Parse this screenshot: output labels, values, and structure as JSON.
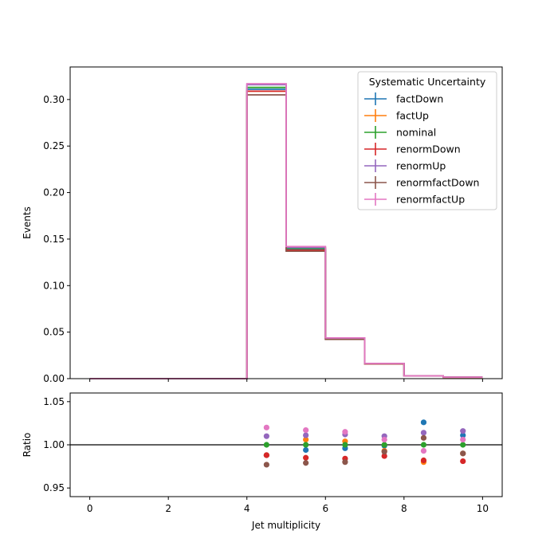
{
  "chart_data": [
    {
      "type": "line",
      "step": true,
      "ylabel": "Events",
      "ylim": [
        0,
        0.335
      ],
      "xlim": [
        -0.5,
        10.5
      ],
      "yticks": [
        "0.00",
        "0.05",
        "0.10",
        "0.15",
        "0.20",
        "0.25",
        "0.30"
      ],
      "ytick_values": [
        0,
        0.05,
        0.1,
        0.15,
        0.2,
        0.25,
        0.3
      ],
      "grid": false,
      "legend": {
        "title": "Systematic Uncertainty",
        "placement": "top-right"
      },
      "bin_edges": [
        0,
        1,
        2,
        3,
        4,
        5,
        6,
        7,
        8,
        9,
        10
      ],
      "series": [
        {
          "name": "factDown",
          "color": "#1f77b4",
          "values": [
            0,
            0,
            0,
            0,
            0.311,
            0.139,
            0.0425,
            0.016,
            0.003,
            0.0016
          ]
        },
        {
          "name": "factUp",
          "color": "#ff7f0e",
          "values": [
            0,
            0,
            0,
            0,
            0.309,
            0.141,
            0.0434,
            0.016,
            0.0029,
            0.0015
          ]
        },
        {
          "name": "nominal",
          "color": "#2ca02c",
          "values": [
            0,
            0,
            0,
            0,
            0.313,
            0.14,
            0.0432,
            0.0162,
            0.003,
            0.0016
          ]
        },
        {
          "name": "renormDown",
          "color": "#d62728",
          "values": [
            0,
            0,
            0,
            0,
            0.309,
            0.138,
            0.0425,
            0.0159,
            0.0029,
            0.0015
          ]
        },
        {
          "name": "renormUp",
          "color": "#9467bd",
          "values": [
            0,
            0,
            0,
            0,
            0.316,
            0.141,
            0.0436,
            0.0163,
            0.003,
            0.0016
          ]
        },
        {
          "name": "renormfactDown",
          "color": "#8c564b",
          "values": [
            0,
            0,
            0,
            0,
            0.305,
            0.137,
            0.0422,
            0.016,
            0.003,
            0.0015
          ]
        },
        {
          "name": "renormfactUp",
          "color": "#e377c2",
          "values": [
            0,
            0,
            0,
            0,
            0.317,
            0.142,
            0.0438,
            0.0164,
            0.003,
            0.0016
          ]
        }
      ]
    },
    {
      "type": "scatter",
      "xlabel": "Jet multiplicity",
      "ylabel": "Ratio",
      "ylim": [
        0.94,
        1.06
      ],
      "xlim": [
        -0.5,
        10.5
      ],
      "xticks": [
        "0",
        "2",
        "4",
        "6",
        "8",
        "10"
      ],
      "xtick_values": [
        0,
        2,
        4,
        6,
        8,
        10
      ],
      "yticks": [
        "0.95",
        "1.00",
        "1.05"
      ],
      "ytick_values": [
        0.95,
        1.0,
        1.05
      ],
      "reference_line": 1.0,
      "x": [
        4.5,
        5.5,
        6.5,
        7.5,
        8.5,
        9.5
      ],
      "series": [
        {
          "name": "factDown",
          "color": "#1f77b4",
          "values": [
            0.988,
            0.994,
            0.996,
            0.999,
            1.026,
            1.011
          ]
        },
        {
          "name": "factUp",
          "color": "#ff7f0e",
          "values": [
            0.988,
            1.006,
            1.004,
            0.993,
            0.98,
            0.99
          ]
        },
        {
          "name": "nominal",
          "color": "#2ca02c",
          "values": [
            1.0,
            1.0,
            1.0,
            1.0,
            1.0,
            1.0
          ]
        },
        {
          "name": "renormDown",
          "color": "#d62728",
          "values": [
            0.988,
            0.985,
            0.984,
            0.987,
            0.982,
            0.981
          ]
        },
        {
          "name": "renormUp",
          "color": "#9467bd",
          "values": [
            1.01,
            1.011,
            1.012,
            1.01,
            1.014,
            1.016
          ]
        },
        {
          "name": "renormfactDown",
          "color": "#8c564b",
          "values": [
            0.977,
            0.979,
            0.98,
            0.992,
            1.008,
            0.99
          ]
        },
        {
          "name": "renormfactUp",
          "color": "#e377c2",
          "values": [
            1.02,
            1.017,
            1.015,
            1.006,
            0.993,
            1.006
          ]
        }
      ]
    }
  ]
}
